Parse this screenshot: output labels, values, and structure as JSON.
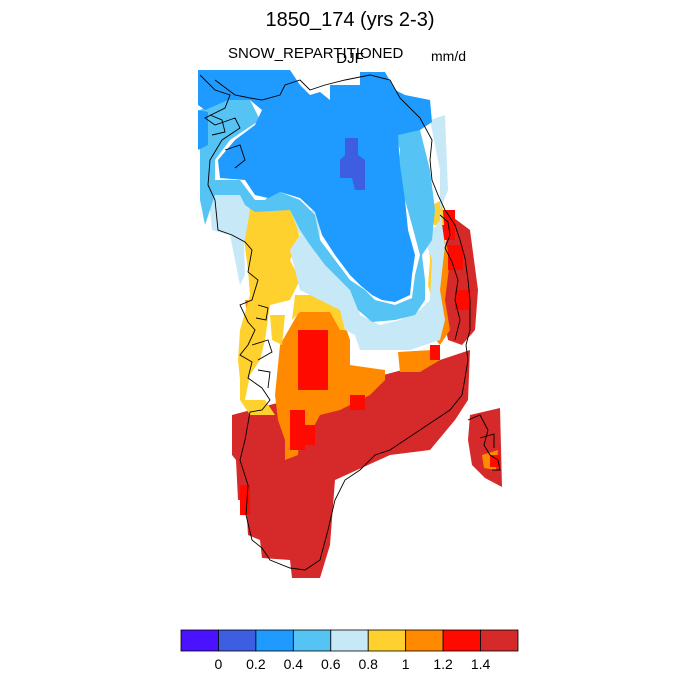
{
  "title": "1850_174 (yrs 2-3)",
  "subtitle_left": "SNOW_REPARTITIONED",
  "subtitle_center": "DJF",
  "subtitle_right": "mm/d",
  "legend": {
    "colors": [
      "#4a12ff",
      "#3d5ee0",
      "#1f9aff",
      "#56c3f5",
      "#c7e8f7",
      "#ffd12e",
      "#ff8a00",
      "#ff0a00",
      "#d62a2a"
    ],
    "labels": [
      "0",
      "0.2",
      "0.4",
      "0.6",
      "0.8",
      "1",
      "1.2",
      "1.4"
    ]
  }
}
